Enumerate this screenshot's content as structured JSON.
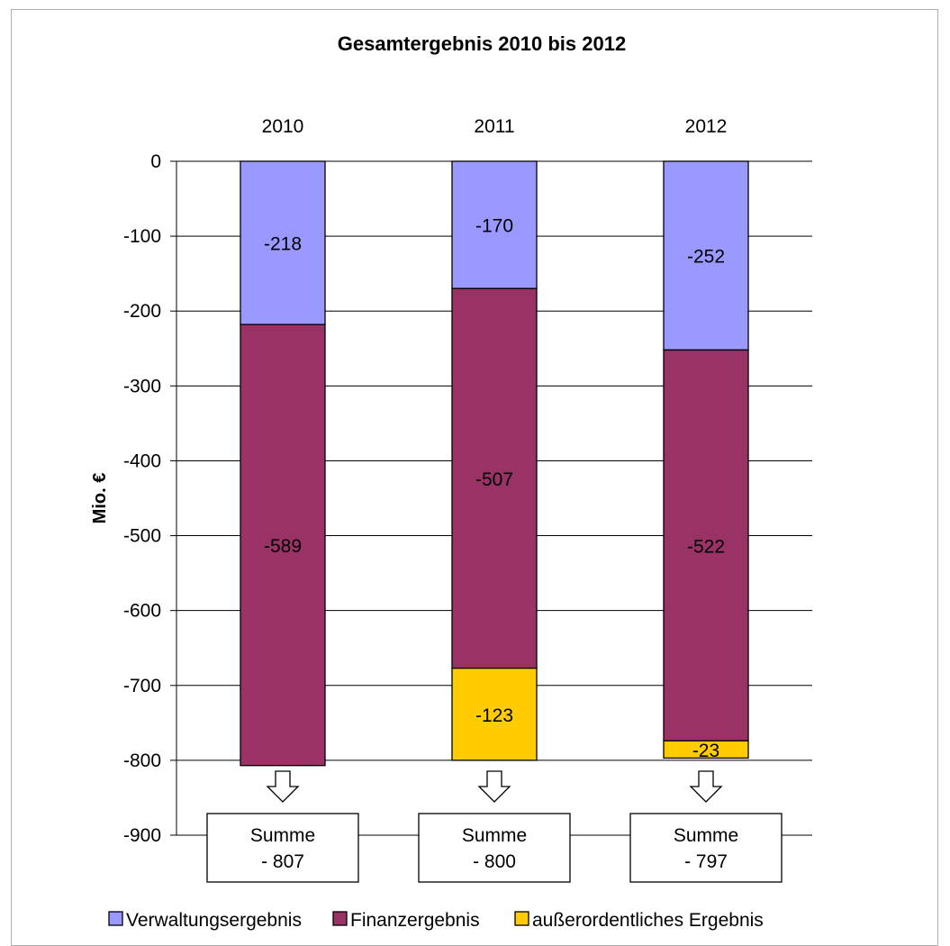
{
  "chart_data": {
    "type": "bar",
    "stacked": true,
    "title": "Gesamtergebnis 2010 bis 2012",
    "ylabel": "Mio. €",
    "xlabel": "",
    "categories": [
      "2010",
      "2011",
      "2012"
    ],
    "category_position": "top",
    "ylim": [
      -900,
      0
    ],
    "yticks": [
      0,
      -100,
      -200,
      -300,
      -400,
      -500,
      -600,
      -700,
      -800,
      -900
    ],
    "grid": true,
    "legend_position": "bottom",
    "series": [
      {
        "name": "Verwaltungsergebnis",
        "values": [
          -218,
          -170,
          -252
        ],
        "labels": [
          "-218",
          "-170",
          "-252"
        ],
        "color": "#9999ff"
      },
      {
        "name": "Finanzergebnis",
        "values": [
          -589,
          -507,
          -522
        ],
        "labels": [
          "-589",
          "-507",
          "-522"
        ],
        "color": "#993366"
      },
      {
        "name": "außerordentliches Ergebnis",
        "values": [
          0,
          -123,
          -23
        ],
        "labels": [
          "",
          "-123",
          "-23"
        ],
        "color": "#ffcc00"
      }
    ],
    "annotations": [
      {
        "category": "2010",
        "line1": "Summe",
        "line2": "- 807"
      },
      {
        "category": "2011",
        "line1": "Summe",
        "line2": "- 800"
      },
      {
        "category": "2012",
        "line1": "Summe",
        "line2": "- 797"
      }
    ]
  }
}
